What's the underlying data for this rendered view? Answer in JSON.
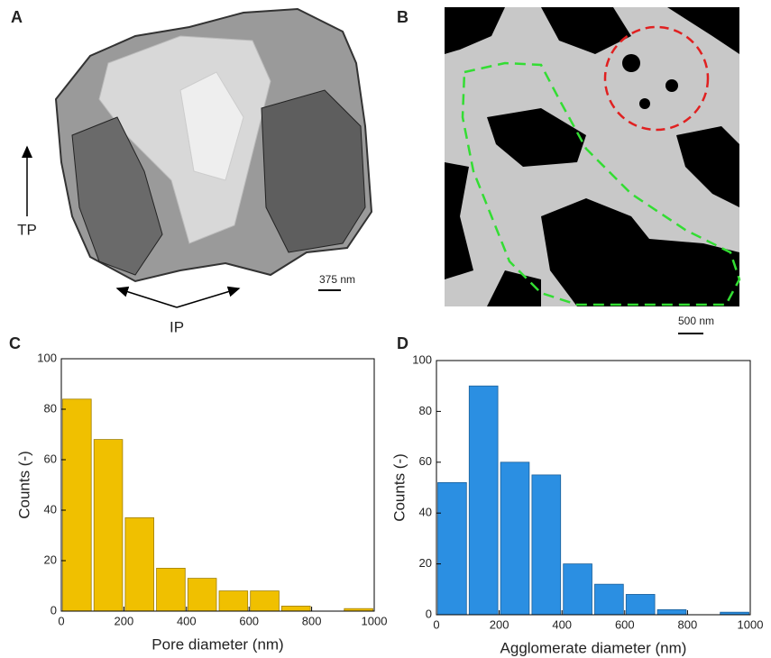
{
  "panels": [
    "A",
    "B",
    "C",
    "D"
  ],
  "annotations": {
    "tp": "TP",
    "ip": "IP",
    "scale_a": "375 nm",
    "scale_b": "500 nm"
  },
  "chart_data": [
    {
      "type": "histogram",
      "xlabel": "Pore diameter (nm)",
      "ylabel": "Counts (-)",
      "bins": [
        0,
        100,
        200,
        300,
        400,
        500,
        600,
        700,
        800,
        900,
        1000
      ],
      "values": [
        84,
        68,
        37,
        17,
        13,
        8,
        8,
        2,
        0,
        1
      ],
      "color": "#f0c000",
      "edgecolor": "#a07e00",
      "xlim": [
        0,
        1000
      ],
      "ylim": [
        0,
        100
      ],
      "xticks": [
        0,
        200,
        400,
        600,
        800,
        1000
      ],
      "yticks": [
        0,
        20,
        40,
        60,
        80,
        100
      ]
    },
    {
      "type": "histogram",
      "xlabel": "Agglomerate diameter (nm)",
      "ylabel": "Counts (-)",
      "bins": [
        0,
        100,
        200,
        300,
        400,
        500,
        600,
        700,
        800,
        900,
        1000
      ],
      "values": [
        52,
        90,
        60,
        55,
        20,
        12,
        8,
        2,
        0,
        1
      ],
      "color": "#2b8fe2",
      "edgecolor": "#1b5f99",
      "xlim": [
        0,
        1000
      ],
      "ylim": [
        0,
        100
      ],
      "xticks": [
        0,
        200,
        400,
        600,
        800,
        1000
      ],
      "yticks": [
        0,
        20,
        40,
        60,
        80,
        100
      ]
    }
  ]
}
